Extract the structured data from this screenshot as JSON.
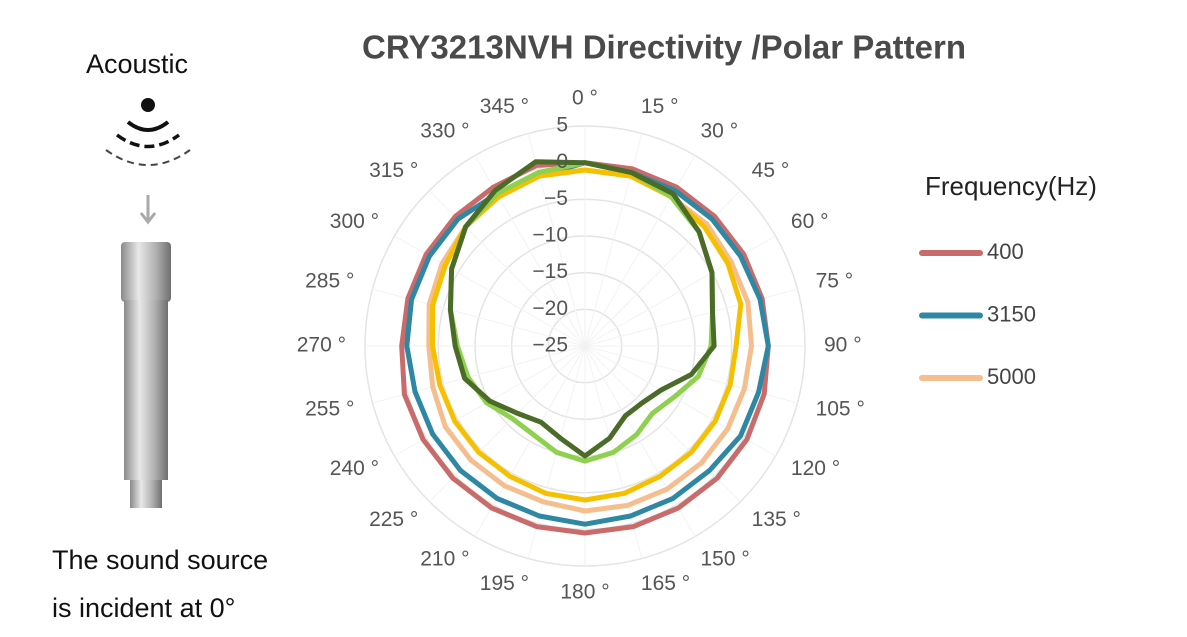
{
  "chart_data": {
    "type": "polar",
    "title": "CRY3213NVH Directivity /Polar Pattern",
    "legend_title": "Frequency(Hz)",
    "annotations": [
      "Acoustic",
      "The sound source",
      "is incident at 0°"
    ],
    "x": [
      0,
      15,
      30,
      45,
      60,
      75,
      90,
      105,
      120,
      135,
      150,
      165,
      180,
      195,
      210,
      225,
      240,
      255,
      270,
      285,
      300,
      315,
      330,
      345
    ],
    "xticks": [
      {
        "value": 0,
        "label": "0 °"
      },
      {
        "value": 15,
        "label": "15 °"
      },
      {
        "value": 30,
        "label": "30 °"
      },
      {
        "value": 45,
        "label": "45 °"
      },
      {
        "value": 60,
        "label": "60 °"
      },
      {
        "value": 75,
        "label": "75 °"
      },
      {
        "value": 90,
        "label": "90 °"
      },
      {
        "value": 105,
        "label": "105 °"
      },
      {
        "value": 120,
        "label": "120 °"
      },
      {
        "value": 135,
        "label": "135 °"
      },
      {
        "value": 150,
        "label": "150 °"
      },
      {
        "value": 165,
        "label": "165 °"
      },
      {
        "value": 180,
        "label": "180 °"
      },
      {
        "value": 195,
        "label": "195 °"
      },
      {
        "value": 210,
        "label": "210 °"
      },
      {
        "value": 225,
        "label": "225 °"
      },
      {
        "value": 240,
        "label": "240 °"
      },
      {
        "value": 255,
        "label": "255 °"
      },
      {
        "value": 270,
        "label": "270 °"
      },
      {
        "value": 285,
        "label": "285 °"
      },
      {
        "value": 300,
        "label": "300 °"
      },
      {
        "value": 315,
        "label": "315 °"
      },
      {
        "value": 330,
        "label": "330 °"
      },
      {
        "value": 345,
        "label": "345 °"
      }
    ],
    "ylim": [
      -25,
      5
    ],
    "yticks": [
      5,
      0,
      {
        "value": -5,
        "label": "−5"
      },
      {
        "value": -10,
        "label": "−10"
      },
      {
        "value": -15,
        "label": "−15"
      },
      {
        "value": -20,
        "label": "−20"
      },
      {
        "value": -25,
        "label": "−25"
      }
    ],
    "grid": true,
    "legend": "right",
    "series": [
      {
        "name": "400",
        "color": "#c96b6b",
        "values": [
          0,
          0,
          0,
          0,
          0,
          0,
          0,
          0.3,
          0.5,
          0.5,
          0.5,
          0.5,
          0.5,
          0.5,
          0.5,
          0.5,
          0.5,
          0.5,
          0,
          0,
          0,
          0,
          0,
          0.5
        ]
      },
      {
        "name": "3150",
        "color": "#2e87a3",
        "values": [
          0,
          -0.5,
          -0.5,
          -0.5,
          -0.5,
          -0.3,
          0,
          -0.5,
          -0.5,
          -1,
          -1,
          -1,
          -0.7,
          -1,
          -1,
          -1,
          -1,
          -1,
          -0.7,
          -0.5,
          -0.5,
          -0.5,
          -1,
          -1
        ]
      },
      {
        "name": "5000",
        "color": "#f5be8e",
        "values": [
          -1,
          -1,
          -1.5,
          -1.5,
          -2,
          -2,
          -2.3,
          -2.5,
          -2.5,
          -2.5,
          -2.5,
          -2.5,
          -2.5,
          -3,
          -3,
          -3,
          -3,
          -3.5,
          -3.7,
          -3,
          -2.5,
          -2,
          -1.5,
          -1
        ]
      },
      {
        "color": "#f5c000",
        "values": [
          -1,
          -1,
          -1.5,
          -2,
          -2.5,
          -3,
          -4.4,
          -4.5,
          -4.5,
          -4.5,
          -4.5,
          -4.2,
          -4,
          -4.2,
          -4.5,
          -4.5,
          -4.5,
          -4.5,
          -4.2,
          -3.5,
          -3,
          -2,
          -1.5,
          -1
        ]
      },
      {
        "color": "#8fd14f",
        "values": [
          0,
          -0.5,
          -1.5,
          -3,
          -5,
          -7,
          -7.8,
          -9,
          -11,
          -12,
          -11,
          -10,
          -9.3,
          -10,
          -11,
          -11,
          -9.5,
          -8.5,
          -7.6,
          -6,
          -4,
          -2,
          -1,
          -0.5
        ]
      },
      {
        "color": "#4b6b29",
        "values": [
          0,
          -0.5,
          -1,
          -3,
          -5,
          -7,
          -7.4,
          -10,
          -13,
          -14,
          -14,
          -12,
          -10,
          -12,
          -13,
          -12,
          -10,
          -8,
          -7.3,
          -6,
          -4,
          -2,
          -0.5,
          1
        ]
      }
    ]
  }
}
